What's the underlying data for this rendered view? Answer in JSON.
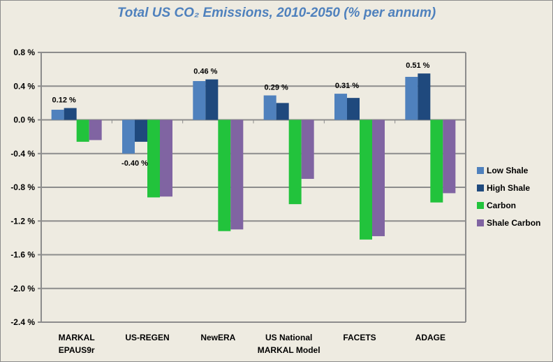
{
  "chart_data": {
    "type": "bar",
    "title": "Total US CO₂ Emissions, 2010-2050 (% per annum)",
    "xlabel": "",
    "ylabel": "",
    "ylim": [
      -2.4,
      0.8
    ],
    "yticks": [
      0.8,
      0.4,
      0.0,
      -0.4,
      -0.8,
      -1.2,
      -1.6,
      -2.0,
      -2.4
    ],
    "ytick_labels": [
      "0.8 %",
      "0.4 %",
      "0.0 %",
      "-0.4 %",
      "-0.8 %",
      "-1.2 %",
      "-1.6 %",
      "-2.0 %",
      "-2.4 %"
    ],
    "grid": true,
    "legend_position": "right",
    "categories": [
      [
        "MARKAL",
        "EPAUS9r"
      ],
      [
        "US-REGEN"
      ],
      [
        "NewERA"
      ],
      [
        "US National",
        "MARKAL Model"
      ],
      [
        "FACETS"
      ],
      [
        "ADAGE"
      ]
    ],
    "series": [
      {
        "name": "Low Shale",
        "color": "#4f81bd",
        "values": [
          0.12,
          -0.4,
          0.46,
          0.29,
          0.31,
          0.51
        ]
      },
      {
        "name": "High Shale",
        "color": "#1f497d",
        "values": [
          0.14,
          -0.26,
          0.48,
          0.2,
          0.26,
          0.55
        ]
      },
      {
        "name": "Carbon",
        "color": "#22c33c",
        "values": [
          -0.26,
          -0.92,
          -1.32,
          -1.0,
          -1.42,
          -0.98
        ]
      },
      {
        "name": "Shale Carbon",
        "color": "#8064a2",
        "values": [
          -0.24,
          -0.91,
          -1.3,
          -0.7,
          -1.38,
          -0.87
        ]
      }
    ],
    "data_labels": [
      {
        "category_index": 0,
        "series_index": 0,
        "text": "0.12 %"
      },
      {
        "category_index": 1,
        "series_index": 0,
        "text": "-0.40 %"
      },
      {
        "category_index": 2,
        "series_index": 0,
        "text": "0.46 %"
      },
      {
        "category_index": 3,
        "series_index": 0,
        "text": "0.29 %"
      },
      {
        "category_index": 4,
        "series_index": 0,
        "text": "0.31 %"
      },
      {
        "category_index": 5,
        "series_index": 0,
        "text": "0.51 %"
      }
    ]
  }
}
